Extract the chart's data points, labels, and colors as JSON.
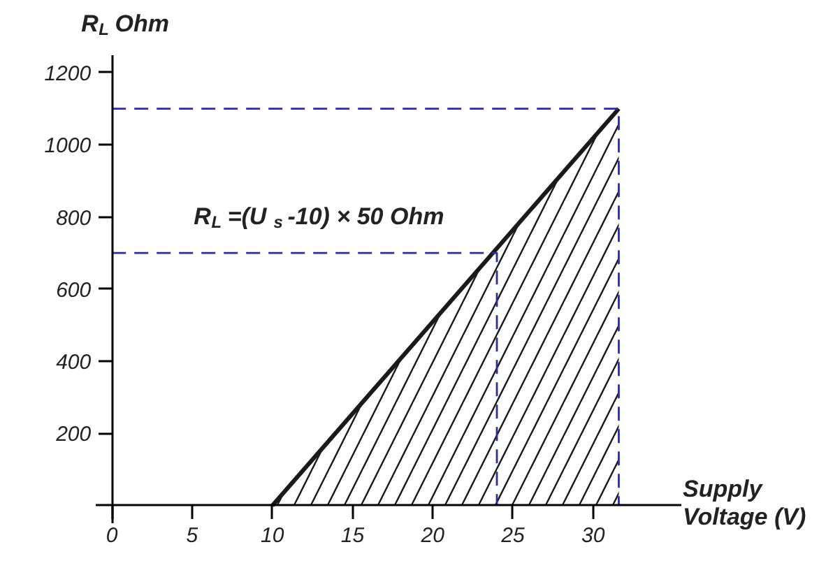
{
  "chart_data": {
    "type": "line",
    "ylabel": "R$_{L}$ Ohm",
    "xlabel": "Supply Voltage (V)",
    "annotations": [
      "R$_{L}$=(U$_{s}$ -10) × 50 Ohm"
    ],
    "xlim": [
      -1,
      35.5
    ],
    "ylim": [
      -50,
      1250
    ],
    "xticks": [
      0,
      5,
      10,
      15,
      20,
      25,
      30
    ],
    "yticks": [
      200,
      400,
      600,
      800,
      1000,
      1200
    ],
    "grid": false,
    "series": [
      {
        "type": "area",
        "color": "#1a1a1a",
        "x": [
          10,
          31.6
        ],
        "values": [
          0,
          1100
        ]
      },
      {
        "color": "#2b2f9b",
        "line_style": "dashed",
        "x": [
          0,
          31.6,
          31.6
        ],
        "values": [
          1100,
          1100,
          0
        ]
      },
      {
        "color": "#2b2f9b",
        "line_style": "dashed",
        "x": [
          0,
          24,
          24
        ],
        "values": [
          700,
          700,
          0
        ]
      }
    ]
  }
}
